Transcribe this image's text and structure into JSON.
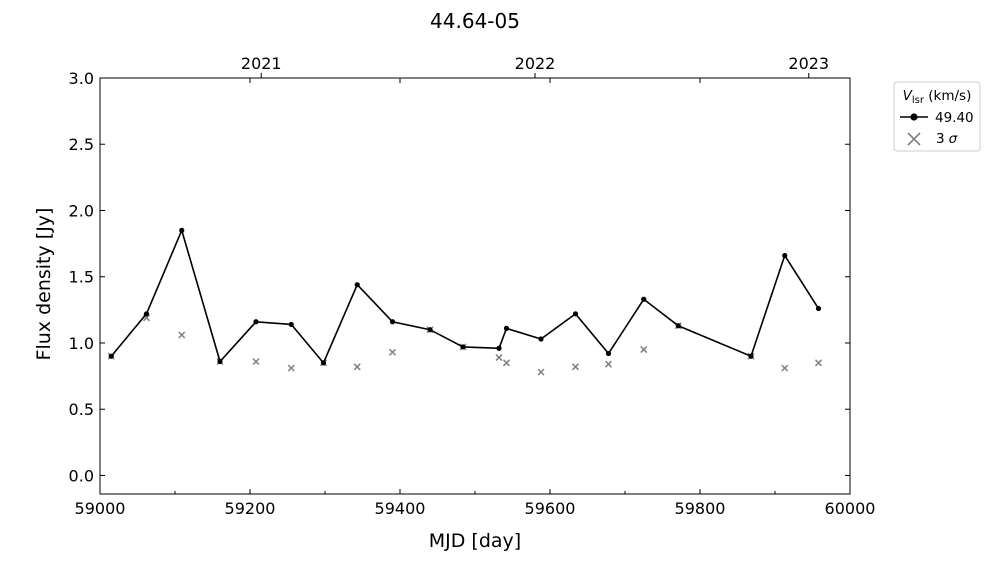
{
  "chart_data": {
    "type": "line",
    "title": "44.64-05",
    "xlabel": "MJD [day]",
    "ylabel": "Flux density [Jy]",
    "xlim": [
      59000,
      60000
    ],
    "ylim": [
      -0.14,
      3.0
    ],
    "xticks": [
      59000,
      59200,
      59400,
      59600,
      59800,
      60000
    ],
    "yticks": [
      0.0,
      0.5,
      1.0,
      1.5,
      2.0,
      2.5,
      3.0
    ],
    "top_axis": {
      "tick_values": [
        59215,
        59580,
        59945
      ],
      "tick_labels": [
        "2021",
        "2022",
        "2023"
      ]
    },
    "grid": false,
    "legend": {
      "placement": "outside-upper-right",
      "title_symbol": "V",
      "title_subscript": "lsr",
      "title_unit": " (km/s)"
    },
    "series": [
      {
        "name": "49.40",
        "color": "#000000",
        "marker": "circle",
        "x": [
          59015,
          59062,
          59109,
          59160,
          59208,
          59255,
          59298,
          59343,
          59390,
          59440,
          59484,
          59532,
          59542,
          59588,
          59634,
          59678,
          59725,
          59771,
          59868,
          59913,
          59958
        ],
        "y": [
          0.9,
          1.22,
          1.85,
          0.86,
          1.16,
          1.14,
          0.85,
          1.44,
          1.16,
          1.1,
          0.97,
          0.96,
          1.11,
          1.03,
          1.22,
          0.92,
          1.33,
          1.13,
          0.9,
          1.66,
          1.26
        ]
      },
      {
        "name": "3 σ",
        "name_number": "3",
        "name_symbol": "σ",
        "color": "#808080",
        "marker": "x",
        "x": [
          59015,
          59062,
          59109,
          59160,
          59208,
          59255,
          59298,
          59343,
          59390,
          59440,
          59484,
          59532,
          59542,
          59588,
          59634,
          59678,
          59725,
          59771,
          59868,
          59913,
          59958
        ],
        "y": [
          0.9,
          1.19,
          1.06,
          0.86,
          0.86,
          0.81,
          0.85,
          0.82,
          0.93,
          1.1,
          0.97,
          0.89,
          0.85,
          0.78,
          0.82,
          0.84,
          0.95,
          1.13,
          0.9,
          0.81,
          0.85
        ]
      }
    ]
  }
}
